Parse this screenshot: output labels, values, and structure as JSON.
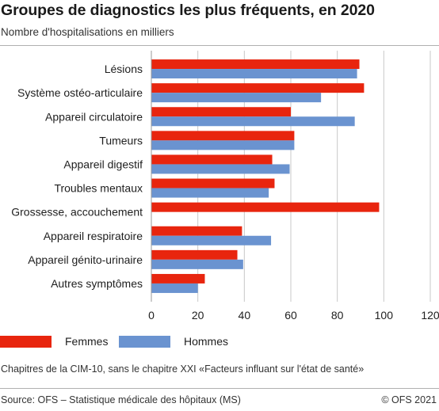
{
  "header": {
    "title": "Groupes de diagnostics les plus fréquents, en 2020",
    "subtitle": "Nombre d'hospitalisations en milliers"
  },
  "colors": {
    "femmes": "#e8250e",
    "hommes": "#6a93d0",
    "grid": "#c8c8c8"
  },
  "chart_data": {
    "type": "bar",
    "orientation": "horizontal",
    "title": "Groupes de diagnostics les plus fréquents, en 2020",
    "subtitle": "Nombre d'hospitalisations en milliers",
    "categories": [
      "Lésions",
      "Système ostéo-articulaire",
      "Appareil circulatoire",
      "Tumeurs",
      "Appareil digestif",
      "Troubles mentaux",
      "Grossesse, accouchement",
      "Appareil respiratoire",
      "Appareil génito-urinaire",
      "Autres symptômes"
    ],
    "series": [
      {
        "name": "Femmes",
        "values": [
          89.5,
          91.5,
          60.0,
          61.5,
          52.0,
          53.0,
          98.0,
          39.0,
          37.0,
          23.0
        ]
      },
      {
        "name": "Hommes",
        "values": [
          88.5,
          73.0,
          87.5,
          61.5,
          59.5,
          50.5,
          null,
          51.5,
          39.5,
          20.0
        ]
      }
    ],
    "xlim": [
      0,
      120
    ],
    "xticks": [
      "0",
      "20",
      "40",
      "60",
      "80",
      "100",
      "120"
    ],
    "grid": true,
    "legend": "bottom-left"
  },
  "note": "Chapitres de la CIM-10, sans le chapitre XXI «Facteurs influant sur l'état de santé»",
  "footer": {
    "source": "Source: OFS – Statistique médicale des hôpitaux (MS)",
    "copyright": "© OFS 2021"
  }
}
